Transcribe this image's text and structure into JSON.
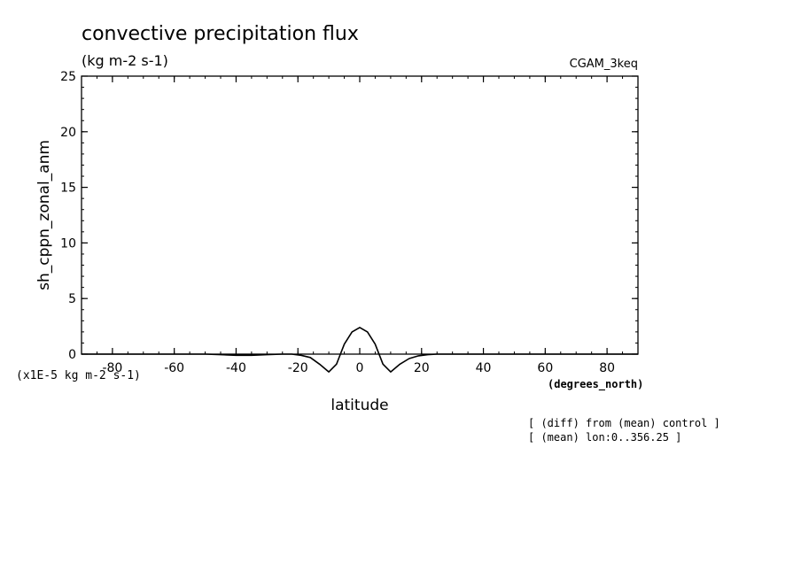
{
  "header": {
    "title": "convective precipitation flux",
    "units": "(kg m-2 s-1)",
    "dataset": "CGAM_3keq"
  },
  "footer": {
    "scale_note": "(x1E-5 kg m-2 s-1)",
    "x_units": "(degrees_north)",
    "diff_note": "[ (diff) from (mean) control ]",
    "mean_note": "[ (mean) lon:0..356.25 ]"
  },
  "chart_data": {
    "type": "line",
    "title": "convective precipitation flux",
    "subtitle": "(kg m-2 s-1)",
    "xlabel": "latitude",
    "ylabel": "sh_cppn_zonal_anm",
    "xlim": [
      -90,
      90
    ],
    "ylim": [
      0,
      25
    ],
    "x_ticks": [
      -80,
      -60,
      -40,
      -20,
      0,
      20,
      40,
      60,
      80
    ],
    "x_tick_labels": [
      "-80",
      "-60",
      "-40",
      "-20",
      "0",
      "20",
      "40",
      "60",
      "80"
    ],
    "y_ticks": [
      0,
      5,
      10,
      15,
      20,
      25
    ],
    "y_tick_labels": [
      "0",
      "5",
      "10",
      "15",
      "20",
      "25"
    ],
    "grid": false,
    "series": [
      {
        "color": "#000000",
        "x": [
          -90,
          -85,
          -80,
          -75,
          -70,
          -65,
          -60,
          -55,
          -50,
          -45,
          -40,
          -35,
          -30,
          -25,
          -22,
          -19,
          -16,
          -13,
          -10,
          -7.5,
          -5,
          -2.5,
          0,
          2.5,
          5,
          7.5,
          10,
          13,
          16,
          19,
          22,
          25,
          30,
          35,
          40,
          45,
          50,
          55,
          60,
          65,
          70,
          75,
          80,
          85,
          90
        ],
        "y": [
          0,
          0,
          0,
          0,
          0,
          0,
          0,
          0,
          0,
          -0.05,
          -0.1,
          -0.1,
          -0.05,
          0,
          0,
          -0.1,
          -0.3,
          -0.9,
          -1.6,
          -0.9,
          0.9,
          2.0,
          2.4,
          2.0,
          0.9,
          -0.9,
          -1.6,
          -0.9,
          -0.4,
          -0.15,
          -0.05,
          0,
          0,
          0,
          0,
          0,
          0,
          0,
          0,
          0,
          0,
          0,
          0,
          0,
          0
        ]
      }
    ]
  }
}
